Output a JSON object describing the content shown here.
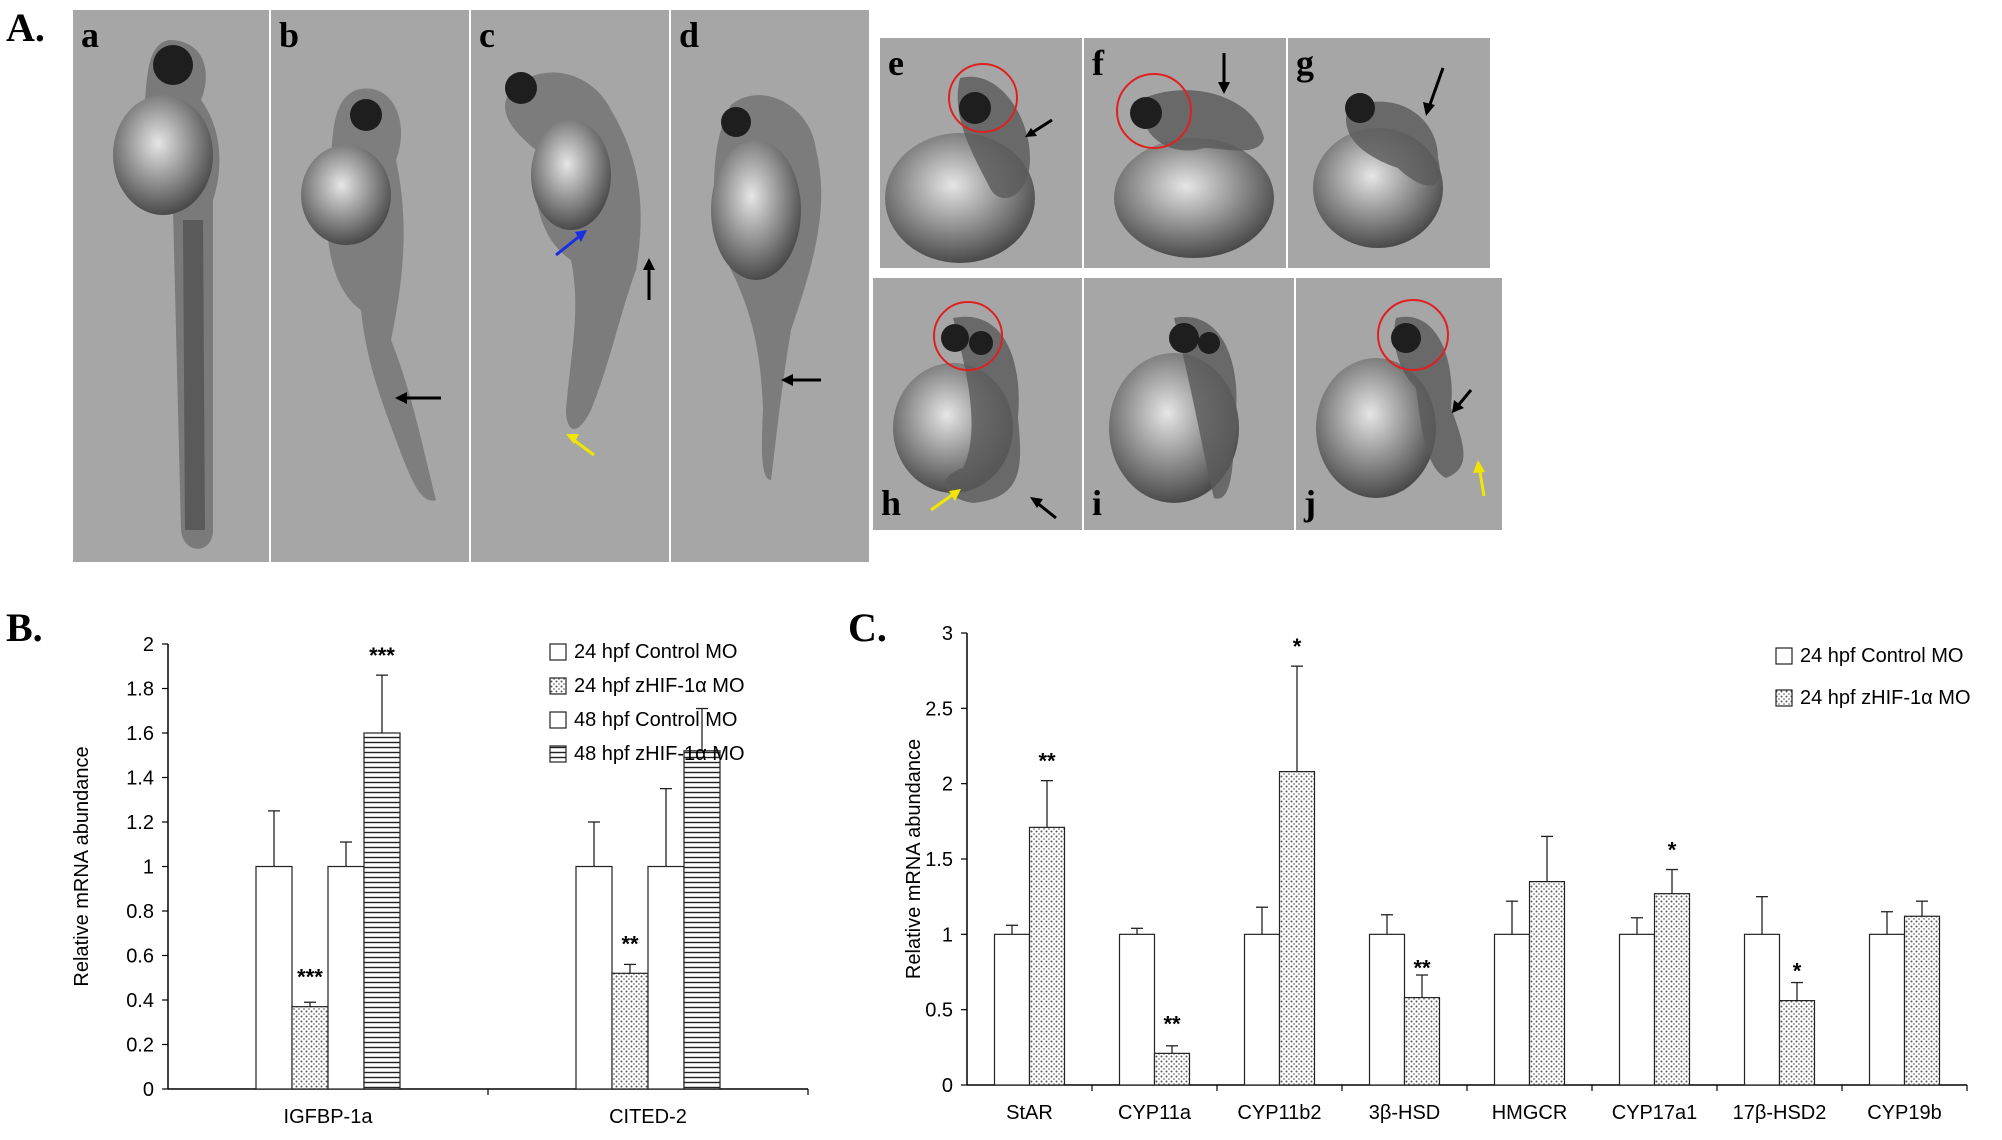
{
  "figure": {
    "panel_labels": {
      "a": "A.",
      "b": "B.",
      "c": "C."
    },
    "panel_a": {
      "sub_labels": [
        "a",
        "b",
        "c",
        "d",
        "e",
        "f",
        "g",
        "h",
        "i",
        "j"
      ],
      "arrow_colors": {
        "black": "#000000",
        "blue": "#1a2fe0",
        "yellow": "#f2e600"
      },
      "circle_color": "#e02020"
    }
  },
  "chart_data": [
    {
      "type": "bar",
      "panel": "B.",
      "ylabel": "Relative mRNA abundance",
      "ylim": [
        0,
        2
      ],
      "yticks": [
        "0",
        "0.2",
        "0.4",
        "0.6",
        "0.8",
        "1",
        "1.2",
        "1.4",
        "1.6",
        "1.8",
        "2"
      ],
      "categories": [
        "IGFBP-1a",
        "CITED-2"
      ],
      "series": [
        {
          "name": "24 hpf Control MO",
          "pattern": "blank",
          "values": [
            1.0,
            1.0
          ],
          "errors": [
            0.25,
            0.2
          ],
          "stars": [
            "",
            ""
          ]
        },
        {
          "name": "24 hpf zHIF-1α MO",
          "pattern": "dots",
          "values": [
            0.37,
            0.52
          ],
          "errors": [
            0.02,
            0.04
          ],
          "stars": [
            "***",
            "**"
          ]
        },
        {
          "name": "48 hpf Control MO",
          "pattern": "blank",
          "values": [
            1.0,
            1.0
          ],
          "errors": [
            0.11,
            0.35
          ],
          "stars": [
            "",
            ""
          ]
        },
        {
          "name": "48 hpf zHIF-1α MO",
          "pattern": "hlines",
          "values": [
            1.6,
            1.52
          ],
          "errors": [
            0.26,
            0.19
          ],
          "stars": [
            "***",
            ""
          ]
        }
      ],
      "legend_position": "top-right",
      "grid": false
    },
    {
      "type": "bar",
      "panel": "C.",
      "ylabel": "Relative mRNA abundance",
      "ylim": [
        0,
        3
      ],
      "yticks": [
        "0",
        "0.5",
        "1",
        "1.5",
        "2",
        "2.5",
        "3"
      ],
      "categories": [
        "StAR",
        "CYP11a",
        "CYP11b2",
        "3β-HSD",
        "HMGCR",
        "CYP17a1",
        "17β-HSD2",
        "CYP19b"
      ],
      "series": [
        {
          "name": "24 hpf Control MO",
          "pattern": "blank",
          "values": [
            1.0,
            1.0,
            1.0,
            1.0,
            1.0,
            1.0,
            1.0,
            1.0
          ],
          "errors": [
            0.06,
            0.04,
            0.18,
            0.13,
            0.22,
            0.11,
            0.25,
            0.15
          ],
          "stars": [
            "",
            "",
            "",
            "",
            "",
            "",
            "",
            ""
          ]
        },
        {
          "name": "24 hpf zHIF-1α MO",
          "pattern": "dots",
          "values": [
            1.71,
            0.21,
            2.08,
            0.58,
            1.35,
            1.27,
            0.56,
            1.12
          ],
          "errors": [
            0.31,
            0.05,
            0.7,
            0.15,
            0.3,
            0.16,
            0.12,
            0.1
          ],
          "stars": [
            "**",
            "**",
            "*",
            "**",
            "",
            "*",
            "*",
            ""
          ]
        }
      ],
      "legend_position": "top-right",
      "grid": false
    }
  ]
}
